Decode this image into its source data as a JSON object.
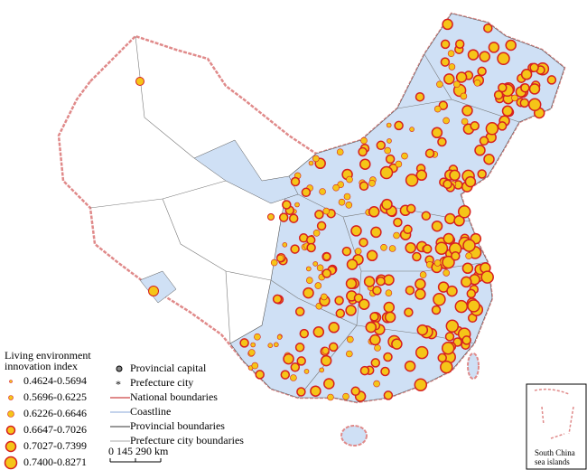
{
  "legend": {
    "title_lines": [
      "Living environment",
      "innovation index"
    ],
    "classes": [
      "0.4624-0.5694",
      "0.5696-0.6225",
      "0.6226-0.6646",
      "0.6647-0.7026",
      "0.7027-0.7399",
      "0.7400-0.8271"
    ],
    "symbols": [
      "Provincial capital",
      "Prefecture city",
      "National boundaries",
      "Coastline",
      "Provincial boundaries",
      "Prefecture city boundaries"
    ]
  },
  "scale_bar": "0 145 290 km",
  "inset": {
    "lines": [
      "South China",
      "sea islands"
    ]
  }
}
